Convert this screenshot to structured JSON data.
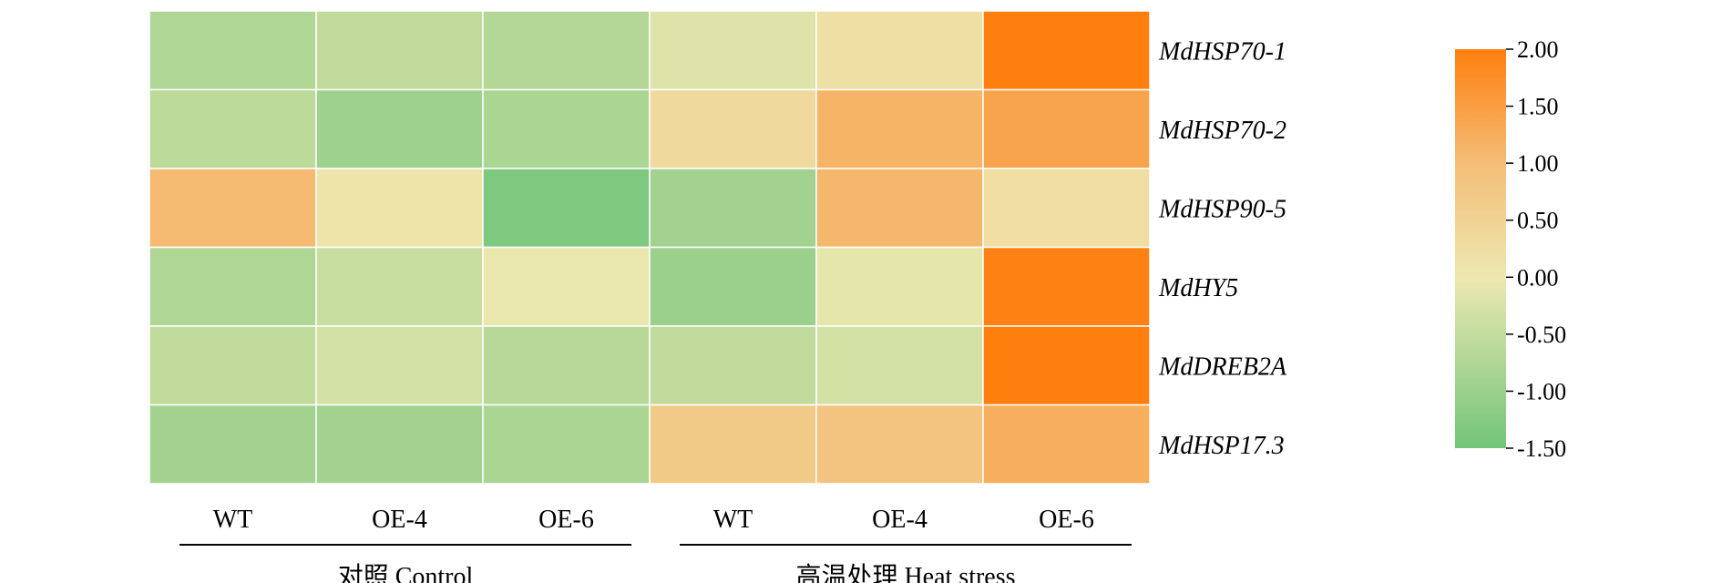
{
  "chart_data": {
    "type": "heatmap",
    "rows": [
      "MdHSP70-1",
      "MdHSP70-2",
      "MdHSP90-5",
      "MdHY5",
      "MdDREB2A",
      "MdHSP17.3"
    ],
    "columns": [
      "WT",
      "OE-4",
      "OE-6",
      "WT",
      "OE-4",
      "OE-6"
    ],
    "groups": [
      {
        "label": "对照 Control",
        "columns": [
          0,
          1,
          2
        ]
      },
      {
        "label": "高温处理 Heat stress",
        "columns": [
          3,
          4,
          5
        ]
      }
    ],
    "values": [
      [
        -0.75,
        -0.55,
        -0.7,
        -0.2,
        0.2,
        2.0
      ],
      [
        -0.6,
        -0.95,
        -0.8,
        0.35,
        1.15,
        1.4
      ],
      [
        1.05,
        0.1,
        -1.35,
        -0.9,
        1.1,
        0.25
      ],
      [
        -0.75,
        -0.45,
        -0.05,
        -1.0,
        -0.1,
        1.95
      ],
      [
        -0.55,
        -0.3,
        -0.65,
        -0.55,
        -0.3,
        2.05
      ],
      [
        -0.9,
        -0.9,
        -0.8,
        0.7,
        0.85,
        1.25
      ]
    ],
    "colorbar": {
      "min": -1.5,
      "max": 2.0,
      "ticks": [
        "2.00",
        "1.50",
        "1.00",
        "0.50",
        "0.00",
        "-0.50",
        "-1.00",
        "-1.50"
      ],
      "tick_values": [
        2.0,
        1.5,
        1.0,
        0.5,
        0.0,
        -0.5,
        -1.0,
        -1.5
      ],
      "stops": [
        {
          "value": -1.5,
          "color": "#72c47a"
        },
        {
          "value": 0.0,
          "color": "#ede8b0"
        },
        {
          "value": 1.0,
          "color": "#f4bd77"
        },
        {
          "value": 2.0,
          "color": "#ff7f0e"
        }
      ]
    },
    "grid_line_color": "#ffffff"
  }
}
